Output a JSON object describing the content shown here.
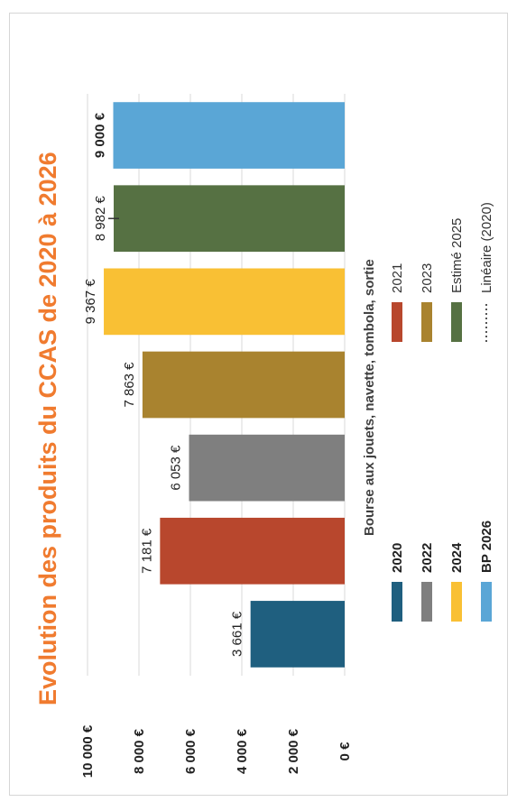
{
  "chart_data": {
    "type": "bar",
    "orientation": "vertical",
    "title": "Evolution des produits du CCAS de 2020 à 2026",
    "subtitle": "Bourse aux jouets, navette, tombola, sortie",
    "categories": [
      "2020",
      "2021",
      "2022",
      "2023",
      "2024",
      "Estimé 2025",
      "BP 2026"
    ],
    "values": [
      3661,
      7181,
      6053,
      7863,
      9367,
      8982,
      9000
    ],
    "value_labels": [
      "3 661 €",
      "7 181 €",
      "6 053 €",
      "7 863 €",
      "9 367 €",
      "8 982 €",
      "9 000 €"
    ],
    "bold_value_label_index": 6,
    "colors": [
      "#1f5f7f",
      "#b8472d",
      "#7f7f7f",
      "#a9832f",
      "#f9c034",
      "#567143",
      "#5aa6d6"
    ],
    "ylim": [
      0,
      10000
    ],
    "yticks": [
      0,
      2000,
      4000,
      6000,
      8000,
      10000
    ],
    "ytick_labels": [
      "0 €",
      "2 000 €",
      "4 000 €",
      "6 000 €",
      "8 000 €",
      "10 000 €"
    ],
    "grid": true,
    "legend_position": "bottom",
    "legend": [
      {
        "label": "2020",
        "color": "#1f5f7f",
        "kind": "box",
        "bold": true
      },
      {
        "label": "2021",
        "color": "#b8472d",
        "kind": "box",
        "bold": false
      },
      {
        "label": "2022",
        "color": "#7f7f7f",
        "kind": "box",
        "bold": true
      },
      {
        "label": "2023",
        "color": "#a9832f",
        "kind": "box",
        "bold": false
      },
      {
        "label": "2024",
        "color": "#f9c034",
        "kind": "box",
        "bold": true
      },
      {
        "label": "Estimé 2025",
        "color": "#567143",
        "kind": "box",
        "bold": false
      },
      {
        "label": "BP 2026",
        "color": "#5aa6d6",
        "kind": "box",
        "bold": true
      },
      {
        "label": "Linéaire (2020)",
        "color": "#1f5f7f",
        "kind": "dotted-line",
        "bold": false
      }
    ]
  }
}
